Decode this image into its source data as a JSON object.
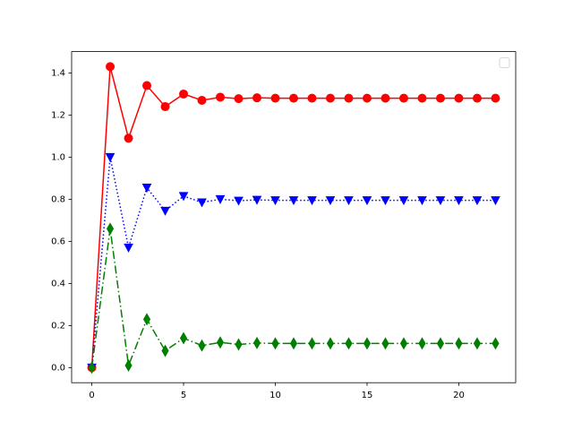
{
  "chart_data": {
    "type": "line",
    "x": [
      0,
      1,
      2,
      3,
      4,
      5,
      6,
      7,
      8,
      9,
      10,
      11,
      12,
      13,
      14,
      15,
      16,
      17,
      18,
      19,
      20,
      21,
      22
    ],
    "series": [
      {
        "color": "#ff0000",
        "marker": "circle",
        "linestyle": "solid",
        "values": [
          0.0,
          1.43,
          1.09,
          1.34,
          1.24,
          1.3,
          1.27,
          1.285,
          1.278,
          1.282,
          1.28,
          1.28,
          1.28,
          1.28,
          1.28,
          1.28,
          1.28,
          1.28,
          1.28,
          1.28,
          1.28,
          1.28,
          1.28
        ]
      },
      {
        "color": "#0000ff",
        "marker": "triangle-down",
        "linestyle": "dotted",
        "values": [
          0.0,
          1.0,
          0.57,
          0.855,
          0.745,
          0.815,
          0.785,
          0.8,
          0.793,
          0.797,
          0.795,
          0.795,
          0.795,
          0.795,
          0.795,
          0.795,
          0.795,
          0.795,
          0.795,
          0.795,
          0.795,
          0.795,
          0.795
        ]
      },
      {
        "color": "#008000",
        "marker": "diamond",
        "linestyle": "dashdot",
        "values": [
          0.0,
          0.66,
          0.01,
          0.23,
          0.08,
          0.14,
          0.105,
          0.12,
          0.11,
          0.117,
          0.115,
          0.115,
          0.115,
          0.115,
          0.115,
          0.115,
          0.115,
          0.115,
          0.115,
          0.115,
          0.115,
          0.115,
          0.115
        ]
      }
    ],
    "xlim": [
      -1.1,
      23.1
    ],
    "xticks": [
      0,
      5,
      10,
      15,
      20
    ],
    "ylim": [
      -0.0715,
      1.5015
    ],
    "yticks": [
      {
        "value": 0,
        "label": "0.0"
      },
      0.2,
      0.4,
      0.6,
      0.8,
      {
        "value": 1,
        "label": "1.0"
      },
      1.2,
      1.4
    ],
    "legend": "upper right"
  }
}
